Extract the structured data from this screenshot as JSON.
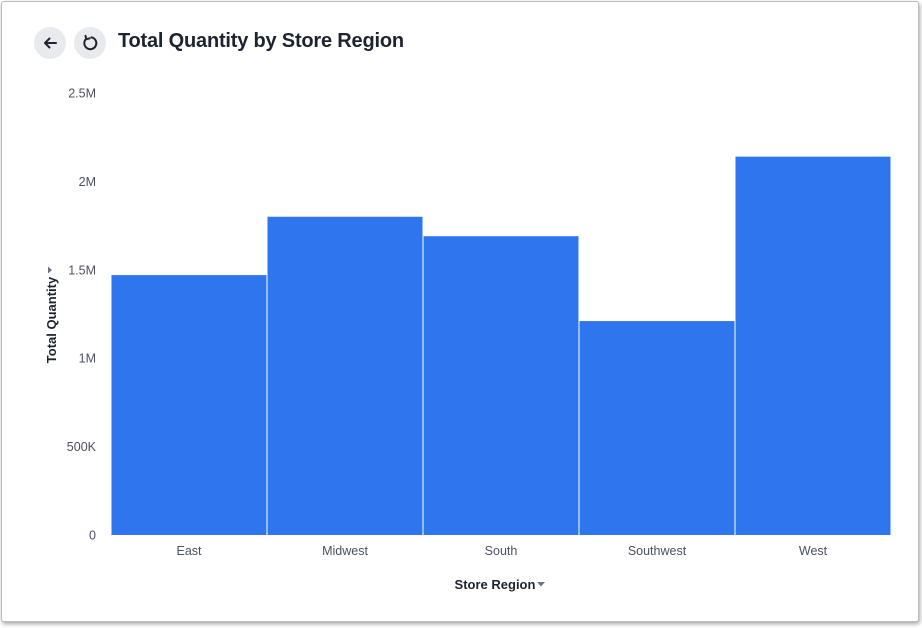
{
  "header": {
    "title": "Total Quantity by Store Region",
    "back_icon": "arrow-left-icon",
    "refresh_icon": "refresh-icon"
  },
  "chart_data": {
    "type": "bar",
    "title": "Total Quantity by Store Region",
    "xlabel": "Store Region",
    "ylabel": "Total Quantity",
    "categories": [
      "East",
      "Midwest",
      "South",
      "Southwest",
      "West"
    ],
    "values": [
      1470000,
      1800000,
      1690000,
      1210000,
      2140000
    ],
    "ylim": [
      0,
      2500000
    ],
    "yticks": [
      "0",
      "500K",
      "1M",
      "1.5M",
      "2M",
      "2.5M"
    ],
    "bar_color": "#2e75ee",
    "grid": false,
    "legend": "none"
  }
}
